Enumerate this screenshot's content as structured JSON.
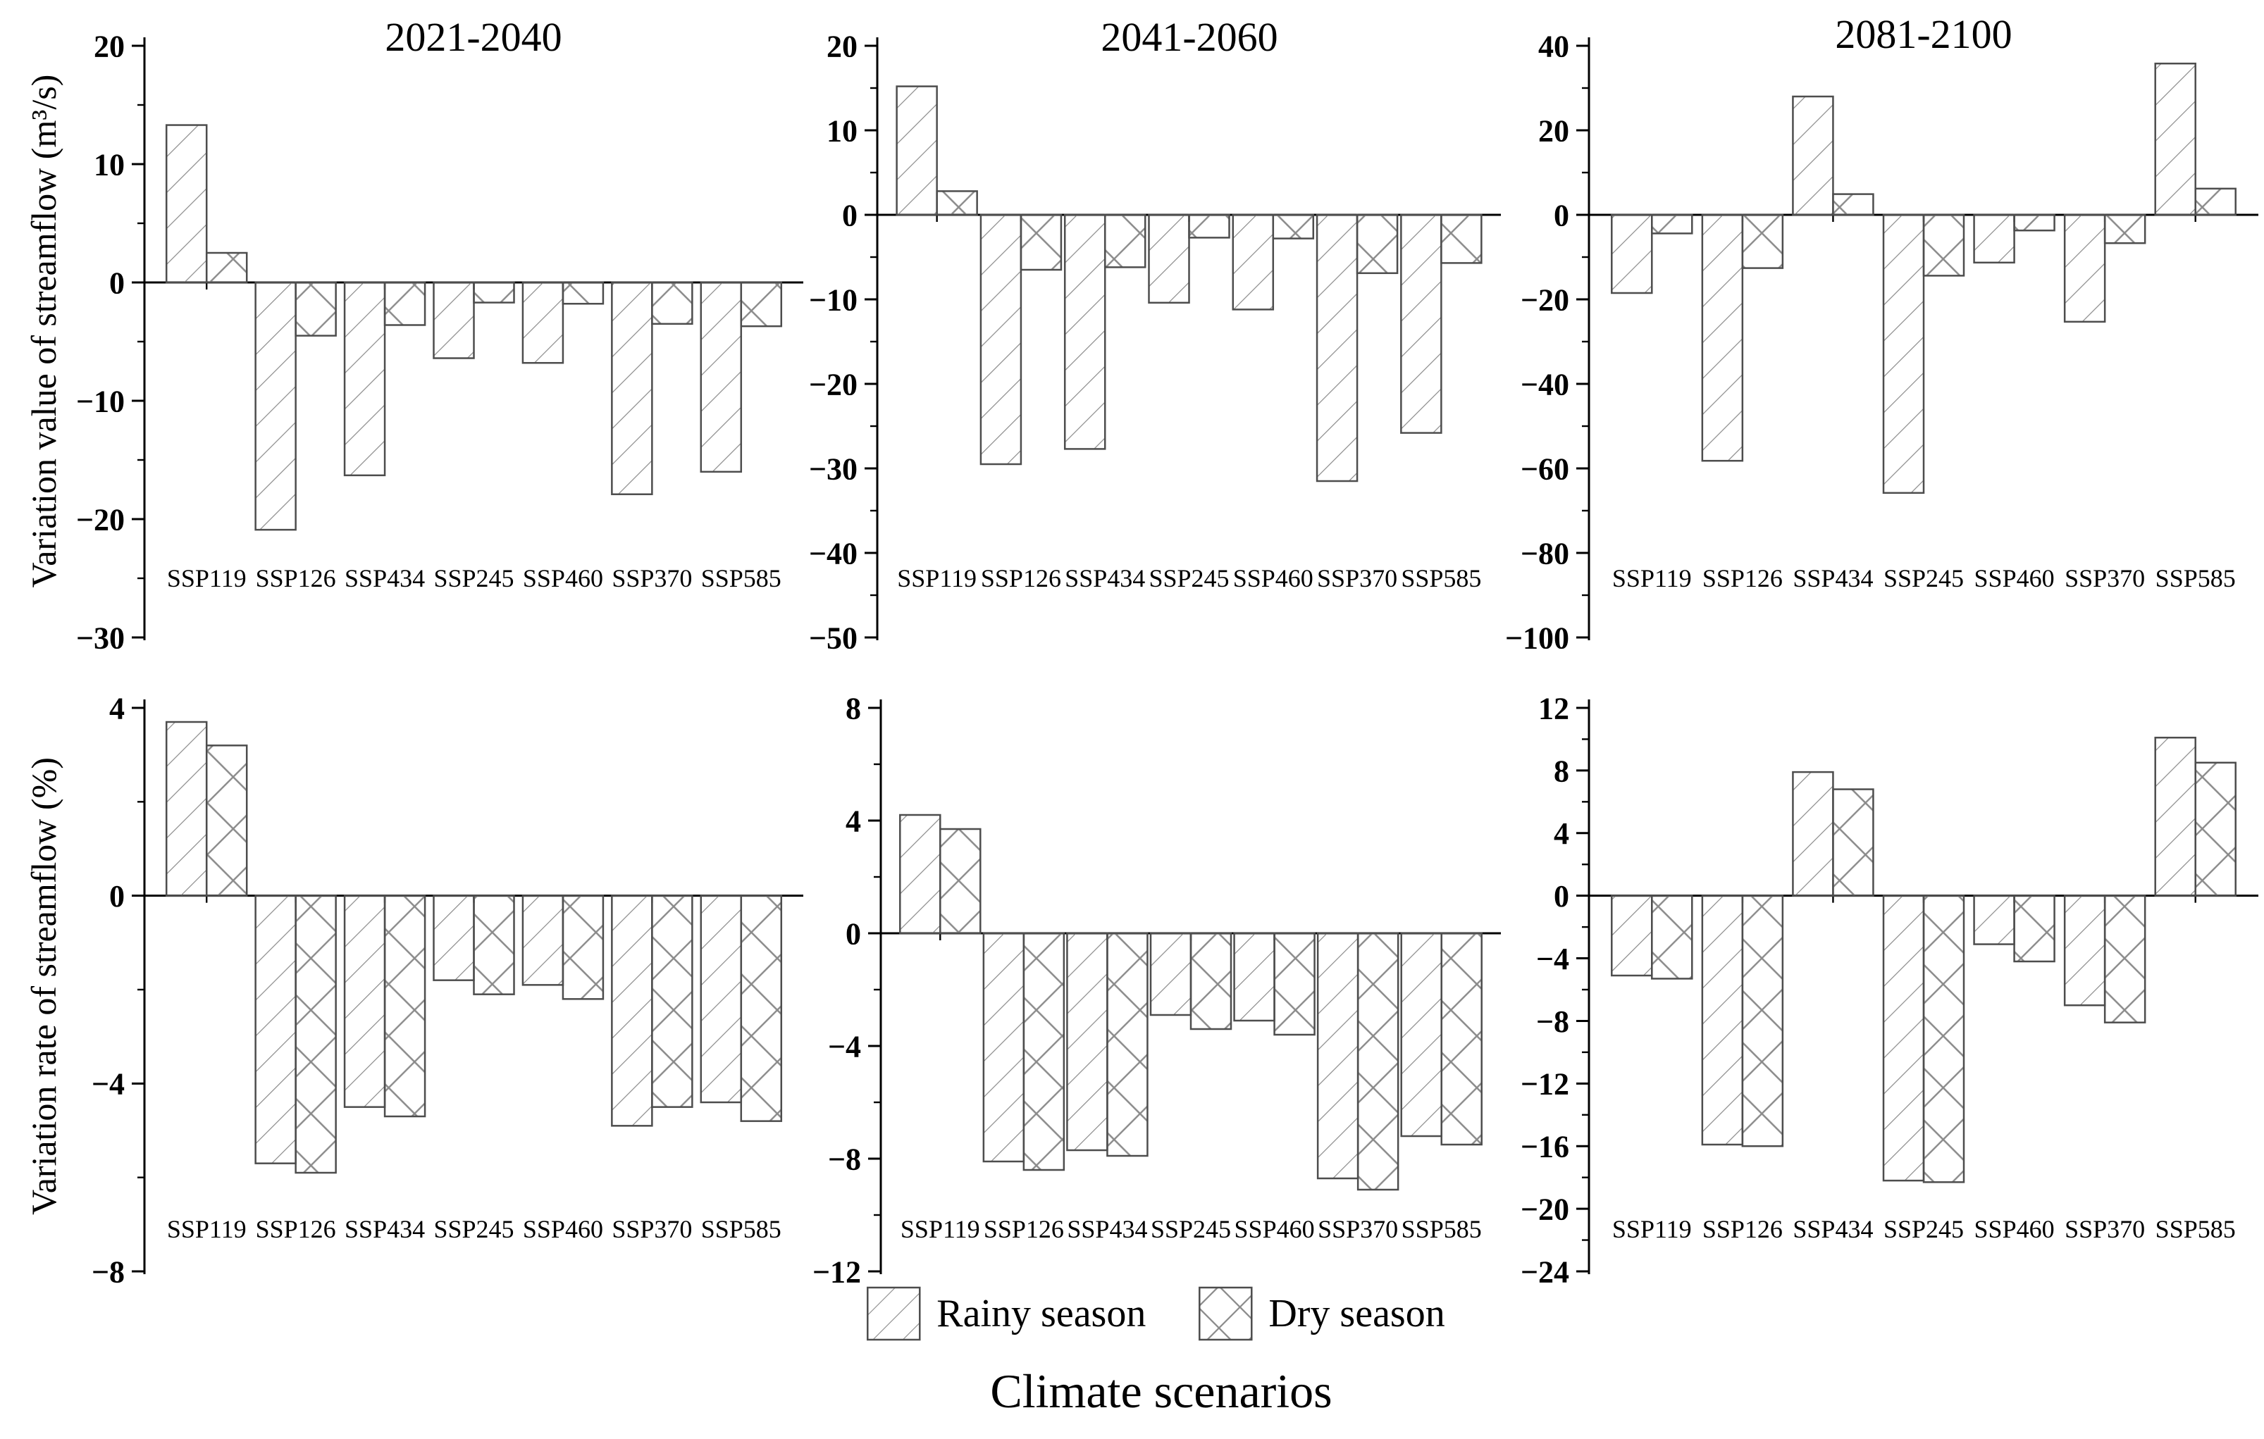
{
  "figure": {
    "row1_ylabel": "Variation value of streamflow (m³/s)",
    "row2_ylabel": "Variation rate of streamflow (%)",
    "xlabel": "Climate scenarios",
    "legend": {
      "rainy_label": "Rainy season",
      "dry_label": "Dry season",
      "rainy_hatch": "diagonal-lines",
      "dry_hatch": "crosshatch-diamond"
    },
    "colors": {
      "background": "#ffffff",
      "axis": "#000000",
      "bar_edge": "#4d4d4d",
      "hatch_line": "#8a8a8a",
      "text": "#000000"
    }
  },
  "chart_data": [
    {
      "type": "bar",
      "panel": "top-left",
      "title": "2021-2040",
      "ylabel": "Variation value of streamflow (m³/s)",
      "categories": [
        "SSP119",
        "SSP126",
        "SSP434",
        "SSP245",
        "SSP460",
        "SSP370",
        "SSP585"
      ],
      "ylim": [
        -30,
        20
      ],
      "ytick_step": 10,
      "ytick_minor": 5,
      "legend_position": "none",
      "grid": false,
      "series": [
        {
          "name": "Rainy season",
          "values": [
            13.3,
            -20.9,
            -16.3,
            -6.4,
            -6.8,
            -17.9,
            -16.0
          ]
        },
        {
          "name": "Dry season",
          "values": [
            2.5,
            -4.5,
            -3.6,
            -1.7,
            -1.8,
            -3.5,
            -3.7
          ]
        }
      ]
    },
    {
      "type": "bar",
      "panel": "top-middle",
      "title": "2041-2060",
      "ylabel": "Variation value of streamflow (m³/s)",
      "categories": [
        "SSP119",
        "SSP126",
        "SSP434",
        "SSP245",
        "SSP460",
        "SSP370",
        "SSP585"
      ],
      "ylim": [
        -50,
        20
      ],
      "ytick_step": 10,
      "ytick_minor": 5,
      "legend_position": "none",
      "grid": false,
      "series": [
        {
          "name": "Rainy season",
          "values": [
            15.2,
            -29.5,
            -27.7,
            -10.4,
            -11.2,
            -31.5,
            -25.8
          ]
        },
        {
          "name": "Dry season",
          "values": [
            2.8,
            -6.5,
            -6.2,
            -2.7,
            -2.8,
            -6.9,
            -5.7
          ]
        }
      ]
    },
    {
      "type": "bar",
      "panel": "top-right",
      "title": "2081-2100",
      "ylabel": "Variation value of streamflow (m³/s)",
      "categories": [
        "SSP119",
        "SSP126",
        "SSP434",
        "SSP245",
        "SSP460",
        "SSP370",
        "SSP585"
      ],
      "ylim": [
        -100,
        40
      ],
      "ytick_step": 20,
      "ytick_minor": 10,
      "legend_position": "none",
      "grid": false,
      "series": [
        {
          "name": "Rainy season",
          "values": [
            -18.5,
            -58.2,
            28.0,
            -65.8,
            -11.3,
            -25.3,
            35.8
          ]
        },
        {
          "name": "Dry season",
          "values": [
            -4.4,
            -12.6,
            4.9,
            -14.4,
            -3.7,
            -6.7,
            6.2
          ]
        }
      ]
    },
    {
      "type": "bar",
      "panel": "bottom-left",
      "title": "",
      "ylabel": "Variation rate of streamflow (%)",
      "categories": [
        "SSP119",
        "SSP126",
        "SSP434",
        "SSP245",
        "SSP460",
        "SSP370",
        "SSP585"
      ],
      "ylim": [
        -8,
        4
      ],
      "ytick_step": 4,
      "ytick_minor": 2,
      "legend_position": "none",
      "grid": false,
      "series": [
        {
          "name": "Rainy season",
          "values": [
            3.7,
            -5.7,
            -4.5,
            -1.8,
            -1.9,
            -4.9,
            -4.4
          ]
        },
        {
          "name": "Dry season",
          "values": [
            3.2,
            -5.9,
            -4.7,
            -2.1,
            -2.2,
            -4.5,
            -4.8
          ]
        }
      ]
    },
    {
      "type": "bar",
      "panel": "bottom-middle",
      "title": "",
      "ylabel": "Variation rate of streamflow (%)",
      "categories": [
        "SSP119",
        "SSP126",
        "SSP434",
        "SSP245",
        "SSP460",
        "SSP370",
        "SSP585"
      ],
      "ylim": [
        -12,
        8
      ],
      "ytick_step": 4,
      "ytick_minor": 2,
      "legend_position": "none",
      "grid": false,
      "series": [
        {
          "name": "Rainy season",
          "values": [
            4.2,
            -8.1,
            -7.7,
            -2.9,
            -3.1,
            -8.7,
            -7.2
          ]
        },
        {
          "name": "Dry season",
          "values": [
            3.7,
            -8.4,
            -7.9,
            -3.4,
            -3.6,
            -9.1,
            -7.5
          ]
        }
      ]
    },
    {
      "type": "bar",
      "panel": "bottom-right",
      "title": "",
      "ylabel": "Variation rate of streamflow (%)",
      "categories": [
        "SSP119",
        "SSP126",
        "SSP434",
        "SSP245",
        "SSP460",
        "SSP370",
        "SSP585"
      ],
      "ylim": [
        -24,
        12
      ],
      "ytick_step": 4,
      "ytick_minor": 2,
      "legend_position": "none",
      "grid": false,
      "series": [
        {
          "name": "Rainy season",
          "values": [
            -5.1,
            -15.9,
            7.9,
            -18.2,
            -3.1,
            -7.0,
            10.1
          ]
        },
        {
          "name": "Dry season",
          "values": [
            -5.3,
            -16.0,
            6.8,
            -18.3,
            -4.2,
            -8.1,
            8.5
          ]
        }
      ]
    }
  ]
}
